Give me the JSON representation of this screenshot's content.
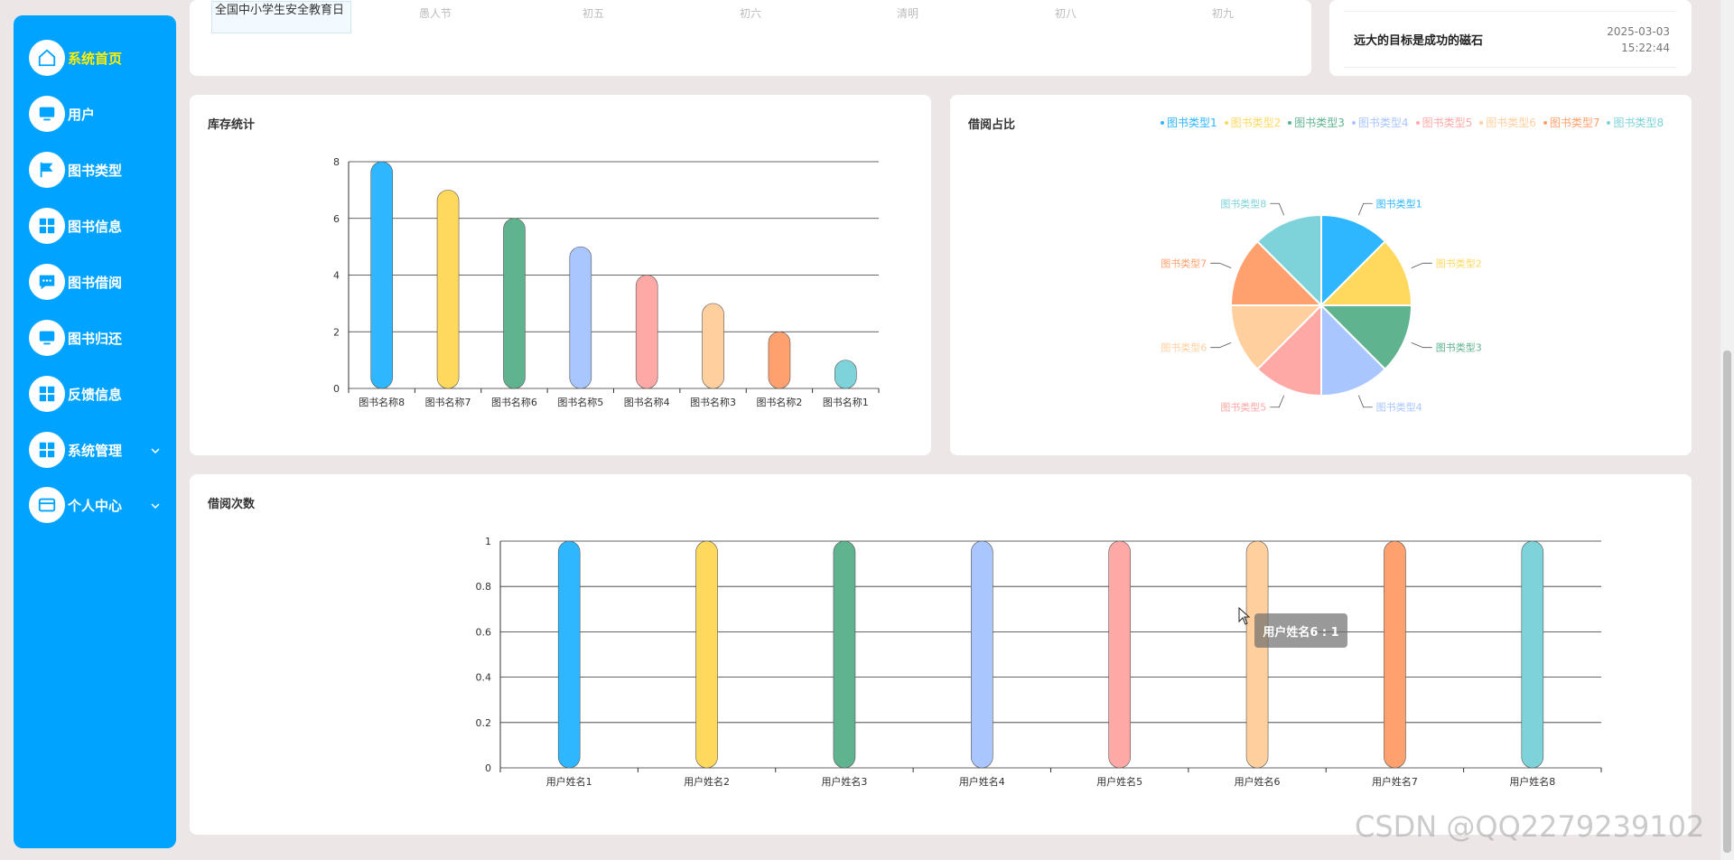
{
  "sidebar": {
    "items": [
      {
        "label": "系统首页",
        "icon": "home-icon",
        "active": true
      },
      {
        "label": "用户",
        "icon": "monitor-icon"
      },
      {
        "label": "图书类型",
        "icon": "flag-icon"
      },
      {
        "label": "图书信息",
        "icon": "grid-icon"
      },
      {
        "label": "图书借阅",
        "icon": "chat-icon"
      },
      {
        "label": "图书归还",
        "icon": "monitor-icon"
      },
      {
        "label": "反馈信息",
        "icon": "grid-icon"
      },
      {
        "label": "系统管理",
        "icon": "grid-icon",
        "expandable": true
      },
      {
        "label": "个人中心",
        "icon": "card-icon",
        "expandable": true
      }
    ]
  },
  "calendar": {
    "first_cell": "全国中小学生安全教育日",
    "cells": [
      "愚人节",
      "初五",
      "初六",
      "清明",
      "初八",
      "初九"
    ]
  },
  "notice": {
    "text": "远大的目标是成功的磁石",
    "date": "2025-03-03",
    "time": "15:22:44"
  },
  "cards": {
    "stock_title": "库存统计",
    "ratio_title": "借阅占比",
    "borrow_title": "借阅次数"
  },
  "tooltip": "用户姓名6 : 1",
  "watermark": "CSDN @QQ2279239102",
  "colors": [
    "#2eb6ff",
    "#ffd95e",
    "#5fb38f",
    "#a9c6ff",
    "#ffa9a7",
    "#ffcf9e",
    "#ffa16e",
    "#7dd3d9"
  ],
  "chart_data": [
    {
      "type": "bar",
      "title": "库存统计",
      "categories": [
        "图书名称8",
        "图书名称7",
        "图书名称6",
        "图书名称5",
        "图书名称4",
        "图书名称3",
        "图书名称2",
        "图书名称1"
      ],
      "values": [
        8,
        7,
        6,
        5,
        4,
        3,
        2,
        1
      ],
      "yticks": [
        0,
        2,
        4,
        6,
        8
      ],
      "ylim": [
        0,
        8
      ]
    },
    {
      "type": "pie",
      "title": "借阅占比",
      "categories": [
        "图书类型1",
        "图书类型2",
        "图书类型3",
        "图书类型4",
        "图书类型5",
        "图书类型6",
        "图书类型7",
        "图书类型8"
      ],
      "values": [
        1,
        1,
        1,
        1,
        1,
        1,
        1,
        1
      ],
      "legend": "top-right"
    },
    {
      "type": "bar",
      "title": "借阅次数",
      "categories": [
        "用户姓名1",
        "用户姓名2",
        "用户姓名3",
        "用户姓名4",
        "用户姓名5",
        "用户姓名6",
        "用户姓名7",
        "用户姓名8"
      ],
      "values": [
        1,
        1,
        1,
        1,
        1,
        1,
        1,
        1
      ],
      "yticks": [
        "0",
        "0.2",
        "0.4",
        "0.6",
        "0.8",
        "1"
      ],
      "ylim": [
        0,
        1
      ]
    }
  ]
}
